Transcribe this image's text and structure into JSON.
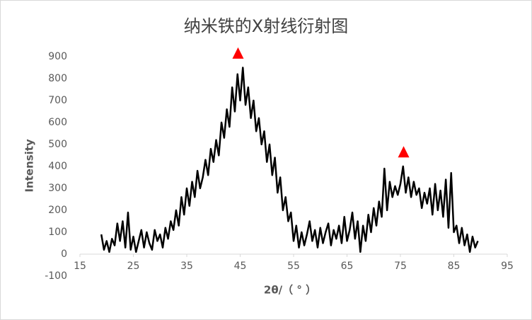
{
  "chart_data": {
    "type": "line",
    "title": "纳米铁的X射线衍射图",
    "x_label": "2θ/（ ° ）",
    "y_label": "Intensity",
    "color": "#000000",
    "x": [
      19,
      19.5,
      20,
      20.5,
      21,
      21.5,
      22,
      22.5,
      23,
      23.5,
      24,
      24.5,
      25,
      25.5,
      26,
      26.5,
      27,
      27.5,
      28,
      28.5,
      29,
      29.5,
      30,
      30.5,
      31,
      31.5,
      32,
      32.5,
      33,
      33.5,
      34,
      34.5,
      35,
      35.5,
      36,
      36.5,
      37,
      37.5,
      38,
      38.5,
      39,
      39.5,
      40,
      40.5,
      41,
      41.5,
      42,
      42.5,
      43,
      43.5,
      44,
      44.5,
      45,
      45.5,
      46,
      46.5,
      47,
      47.5,
      48,
      48.5,
      49,
      49.5,
      50,
      50.5,
      51,
      51.5,
      52,
      52.5,
      53,
      53.5,
      54,
      54.5,
      55,
      55.5,
      56,
      56.5,
      57,
      57.5,
      58,
      58.5,
      59,
      59.5,
      60,
      60.5,
      61,
      61.5,
      62,
      62.5,
      63,
      63.5,
      64,
      64.5,
      65,
      65.5,
      66,
      66.5,
      67,
      67.5,
      68,
      68.5,
      69,
      69.5,
      70,
      70.5,
      71,
      71.5,
      72,
      72.5,
      73,
      73.5,
      74,
      74.5,
      75,
      75.5,
      76,
      76.5,
      77,
      77.5,
      78,
      78.5,
      79,
      79.5,
      80,
      80.5,
      81,
      81.5,
      82,
      82.5,
      83,
      83.5,
      84,
      84.5,
      85,
      85.5,
      86,
      86.5,
      87,
      87.5,
      88,
      88.5,
      89,
      89.5
    ],
    "values": [
      90,
      20,
      60,
      10,
      70,
      40,
      140,
      60,
      150,
      30,
      190,
      20,
      80,
      10,
      60,
      110,
      30,
      100,
      50,
      20,
      110,
      60,
      90,
      30,
      120,
      70,
      150,
      110,
      200,
      130,
      260,
      180,
      300,
      220,
      330,
      260,
      380,
      300,
      350,
      430,
      360,
      480,
      420,
      520,
      450,
      600,
      530,
      660,
      580,
      760,
      650,
      820,
      700,
      850,
      680,
      760,
      620,
      700,
      560,
      620,
      500,
      560,
      420,
      500,
      360,
      440,
      280,
      350,
      200,
      260,
      150,
      190,
      60,
      130,
      30,
      100,
      40,
      90,
      150,
      60,
      110,
      30,
      120,
      50,
      100,
      140,
      40,
      110,
      70,
      130,
      50,
      170,
      60,
      110,
      190,
      70,
      150,
      10,
      130,
      60,
      180,
      100,
      210,
      130,
      240,
      170,
      390,
      200,
      330,
      260,
      310,
      270,
      320,
      400,
      280,
      350,
      260,
      330,
      270,
      300,
      210,
      280,
      230,
      300,
      180,
      320,
      200,
      290,
      170,
      340,
      120,
      370,
      100,
      130,
      50,
      120,
      40,
      90,
      10,
      80,
      30,
      60
    ],
    "peaks": {
      "x": [
        44.6,
        75.6
      ],
      "values": [
        910,
        460
      ],
      "color": "#ff0000"
    },
    "xlim": [
      15,
      95
    ],
    "xticks": [
      15,
      25,
      35,
      45,
      55,
      65,
      75,
      85,
      95
    ],
    "ylim": [
      -100,
      900
    ],
    "yticks": [
      -100,
      0,
      100,
      200,
      300,
      400,
      500,
      600,
      700,
      800,
      900
    ]
  }
}
